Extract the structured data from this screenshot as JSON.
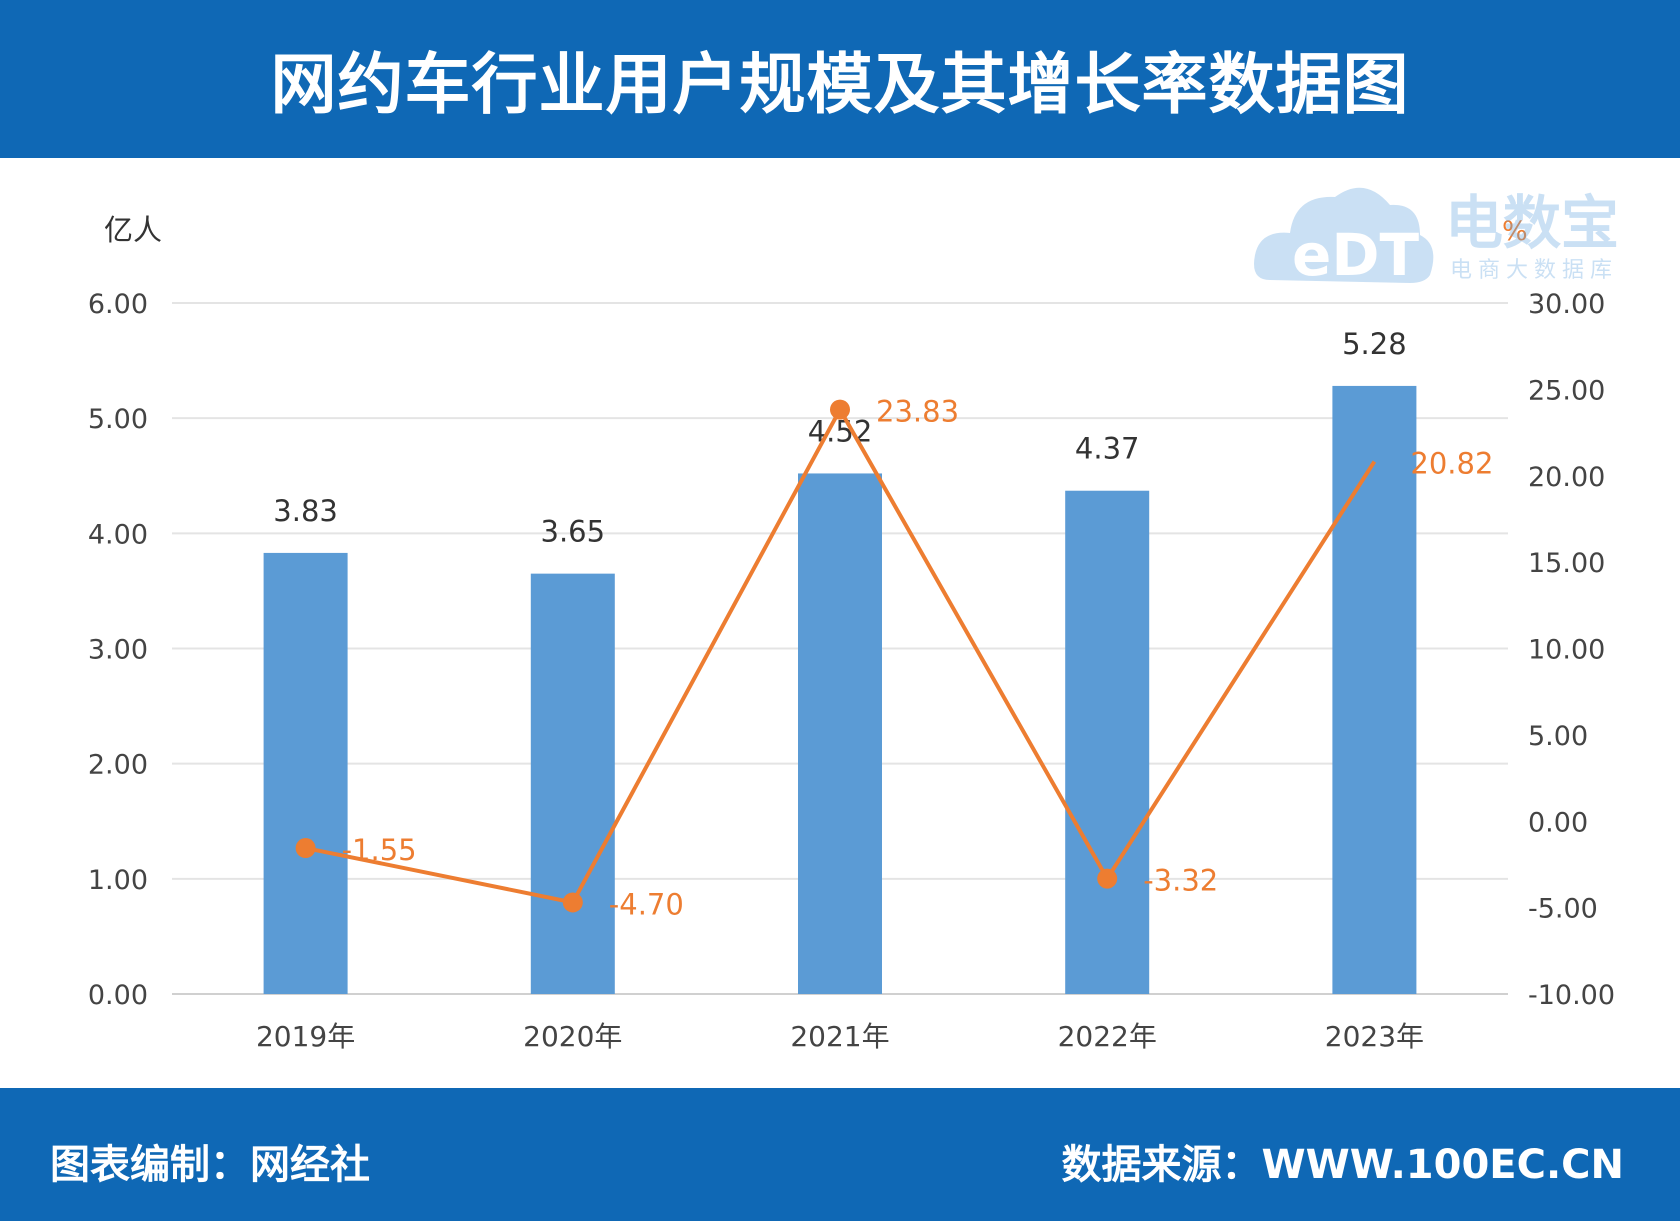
{
  "header": {
    "title": "网约车行业用户规模及其增长率数据图"
  },
  "footer": {
    "credit": "图表编制：网经社",
    "source": "数据来源：WWW.100EC.CN"
  },
  "watermark": {
    "brand": "电数宝",
    "tagline": "电商大数据库",
    "logo_text": "eDT"
  },
  "colors": {
    "bar": "#5b9bd5",
    "line": "#ed7d31",
    "band": "#0f68b5"
  },
  "chart_data": {
    "type": "bar",
    "categories": [
      "2019年",
      "2020年",
      "2021年",
      "2022年",
      "2023年"
    ],
    "left_axis": {
      "unit": "亿人",
      "min": 0,
      "max": 6,
      "ticks": [
        "0.00",
        "1.00",
        "2.00",
        "3.00",
        "4.00",
        "5.00",
        "6.00"
      ]
    },
    "right_axis": {
      "unit": "%",
      "min": -10,
      "max": 30,
      "ticks": [
        "-10.00",
        "-5.00",
        "0.00",
        "5.00",
        "10.00",
        "15.00",
        "20.00",
        "25.00",
        "30.00"
      ]
    },
    "series": [
      {
        "type": "bar",
        "axis": "left",
        "values": [
          3.83,
          3.65,
          4.52,
          4.37,
          5.28
        ],
        "labels": [
          "3.83",
          "3.65",
          "4.52",
          "4.37",
          "5.28"
        ]
      },
      {
        "type": "line",
        "axis": "right",
        "values": [
          -1.55,
          -4.7,
          23.83,
          -3.32,
          20.82
        ],
        "labels": [
          "-1.55",
          "-4.70",
          "23.83",
          "-3.32",
          "20.82"
        ]
      }
    ],
    "grid": true
  }
}
